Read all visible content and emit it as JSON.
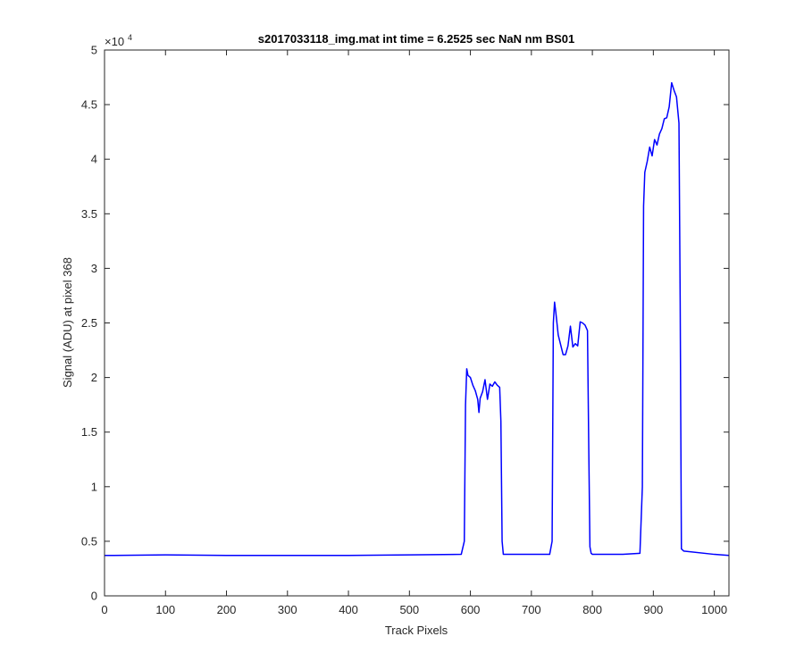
{
  "chart_data": {
    "type": "line",
    "title": "s2017033118_img.mat int time = 6.2525 sec  NaN nm BS01",
    "xlabel": "Track Pixels",
    "ylabel": "Signal (ADU) at pixel 368",
    "xlim": [
      0,
      1024
    ],
    "ylim": [
      0,
      50000
    ],
    "xticks": [
      0,
      100,
      200,
      300,
      400,
      500,
      600,
      700,
      800,
      900,
      1000
    ],
    "xtick_labels": [
      "0",
      "100",
      "200",
      "300",
      "400",
      "500",
      "600",
      "700",
      "800",
      "900",
      "1000"
    ],
    "yticks": [
      0,
      5000,
      10000,
      15000,
      20000,
      25000,
      30000,
      35000,
      40000,
      45000,
      50000
    ],
    "ytick_labels": [
      "0",
      "0.5",
      "1",
      "1.5",
      "2",
      "2.5",
      "3",
      "3.5",
      "4",
      "4.5",
      "5"
    ],
    "y_exponent_base": "×10",
    "y_exponent_power": "4",
    "grid": false,
    "series": [
      {
        "color": "#0000ff",
        "x": [
          0,
          100,
          200,
          300,
          400,
          500,
          585,
          590,
          592,
          594,
          596,
          600,
          604,
          608,
          612,
          614,
          616,
          620,
          624,
          628,
          632,
          636,
          640,
          644,
          648,
          650,
          652,
          654,
          660,
          700,
          730,
          734,
          736,
          738,
          740,
          744,
          748,
          752,
          756,
          760,
          764,
          768,
          772,
          776,
          780,
          784,
          788,
          792,
          794,
          796,
          798,
          800,
          850,
          878,
          882,
          884,
          886,
          890,
          894,
          898,
          902,
          906,
          910,
          914,
          918,
          922,
          926,
          930,
          934,
          938,
          942,
          944,
          946,
          950,
          1000,
          1024
        ],
        "y": [
          3700,
          3750,
          3700,
          3700,
          3700,
          3750,
          3800,
          5000,
          17500,
          20800,
          20200,
          20000,
          19300,
          18800,
          18000,
          16800,
          18100,
          18700,
          19800,
          18000,
          19400,
          19200,
          19600,
          19300,
          19100,
          16000,
          5000,
          3800,
          3800,
          3800,
          3800,
          5000,
          25000,
          26900,
          26000,
          23900,
          23000,
          22100,
          22100,
          22900,
          24700,
          22800,
          23100,
          22900,
          25100,
          25000,
          24800,
          24300,
          14000,
          4500,
          3900,
          3800,
          3800,
          3900,
          10000,
          35700,
          38800,
          39800,
          41100,
          40300,
          41800,
          41300,
          42300,
          42800,
          43700,
          43800,
          44800,
          47000,
          46300,
          45700,
          43300,
          27000,
          4300,
          4100,
          3800,
          3700
        ]
      }
    ]
  }
}
